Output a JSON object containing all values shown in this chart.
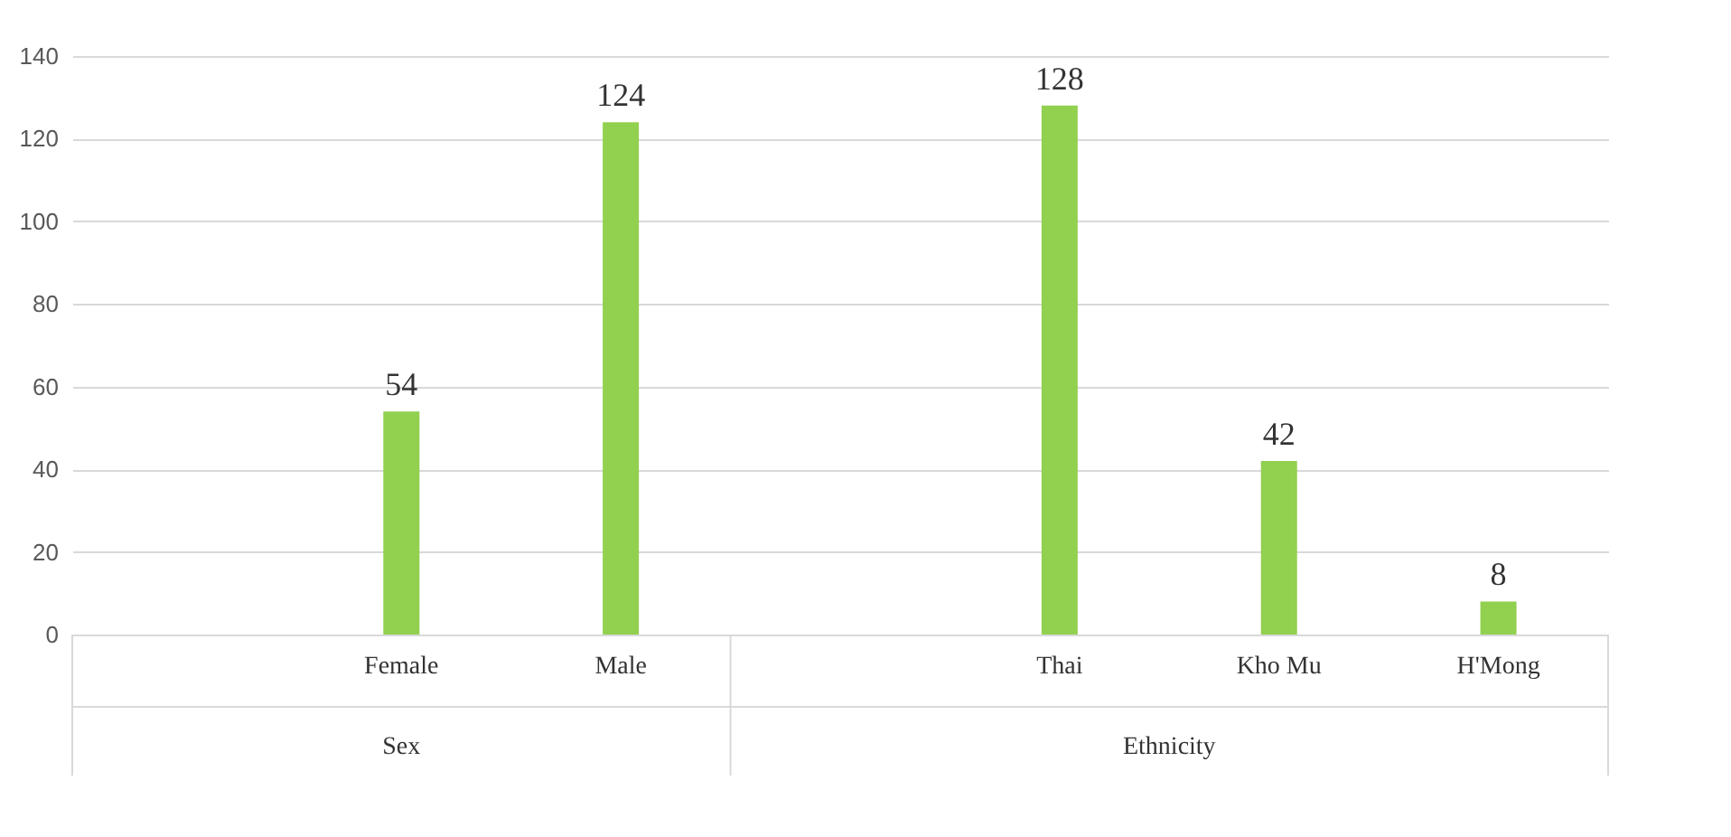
{
  "chart_data": {
    "type": "bar",
    "categories": [
      null,
      "Female",
      "Male",
      null,
      "Thai",
      "Kho Mu",
      "H'Mong"
    ],
    "values": [
      null,
      54,
      124,
      null,
      128,
      42,
      8
    ],
    "color": "#92d050",
    "ylim": [
      0,
      140
    ],
    "yticks": [
      0,
      20,
      40,
      60,
      80,
      100,
      120,
      140
    ],
    "grid": "y",
    "data_labels": true,
    "annotations": [
      "Sex",
      "Ethnicity"
    ]
  }
}
